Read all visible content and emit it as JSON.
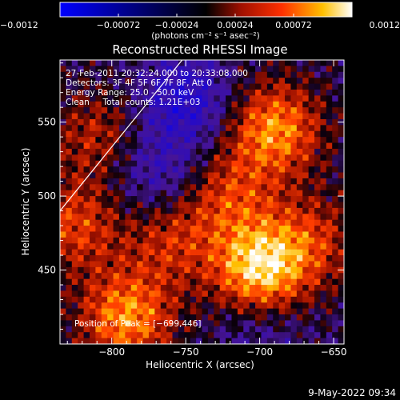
{
  "chart_data": {
    "type": "heatmap",
    "title": "Reconstructed RHESSI Image",
    "xlabel": "Heliocentric X (arcsec)",
    "ylabel": "Heliocentric Y (arcsec)",
    "xlim": [
      -835,
      -643
    ],
    "ylim": [
      400,
      592
    ],
    "xticks": [
      -800,
      -750,
      -700,
      -650
    ],
    "yticks": [
      450,
      500,
      550
    ],
    "x_tick_labels": [
      "−800",
      "−750",
      "−700",
      "−650"
    ],
    "y_tick_labels": [
      "450",
      "500",
      "550"
    ],
    "colorbar": {
      "range": [
        -0.0012,
        0.0012
      ],
      "ticks": [
        -0.0012,
        -0.00072,
        -0.00024,
        0.00024,
        0.00072,
        0.0012
      ],
      "tick_labels": [
        "−0.0012",
        "−0.00072",
        "−0.00024",
        "0.00024",
        "0.00072",
        "0.0012"
      ],
      "label": "(photons cm⁻² s⁻¹ asec⁻²)"
    },
    "info_lines": [
      "27-Feb-2011 20:32:24.000 to 20:33:08.000",
      "Detectors: 3F 4F 5F 6F 7F 8F, Att 0",
      "Energy Range: 25.0 - 50.0 keV",
      "Clean     Total counts: 1.21E+03"
    ],
    "peak_text": "Position of Peak = [−699,446]",
    "peak": [
      -699,
      446
    ],
    "limb_line": [
      [
        -835,
        490
      ],
      [
        -750,
        595
      ]
    ],
    "hotspots": [
      {
        "x": -700,
        "y": 450,
        "value": 0.0012
      },
      {
        "x": -690,
        "y": 545,
        "value": 0.0009
      },
      {
        "x": -790,
        "y": 418,
        "value": 0.0009
      },
      {
        "x": -825,
        "y": 480,
        "value": 0.0006
      },
      {
        "x": -720,
        "y": 500,
        "value": 0.00055
      },
      {
        "x": -760,
        "y": 470,
        "value": 0.0005
      },
      {
        "x": -665,
        "y": 470,
        "value": 0.0005
      },
      {
        "x": -810,
        "y": 540,
        "value": 0.00045
      }
    ],
    "minima": [
      {
        "x": -750,
        "y": 565,
        "value": -0.0006
      },
      {
        "x": -770,
        "y": 515,
        "value": -0.0004
      },
      {
        "x": -700,
        "y": 415,
        "value": -0.0003
      }
    ]
  },
  "footer_date": "9-May-2022 09:34",
  "colors": {
    "background": "#000000",
    "foreground": "#ffffff"
  }
}
